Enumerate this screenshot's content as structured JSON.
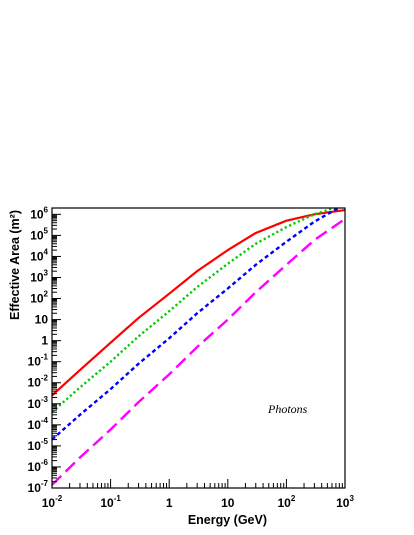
{
  "chart_data": {
    "type": "line",
    "xlabel": "Energy (GeV)",
    "ylabel": "Effective Area (m²)",
    "x_scale": "log",
    "y_scale": "log",
    "xlim": [
      0.01,
      1000
    ],
    "ylim": [
      1e-07,
      2000000.0
    ],
    "grid": false,
    "annotation": "Photons",
    "x_ticks": [
      {
        "value": 0.01,
        "base": "10",
        "exp": "-2"
      },
      {
        "value": 0.1,
        "base": "10",
        "exp": "-1"
      },
      {
        "value": 1,
        "base": "1",
        "exp": ""
      },
      {
        "value": 10,
        "base": "10",
        "exp": ""
      },
      {
        "value": 100,
        "base": "10",
        "exp": "2"
      },
      {
        "value": 1000,
        "base": "10",
        "exp": "3"
      }
    ],
    "y_ticks": [
      {
        "value": 1e-07,
        "base": "10",
        "exp": "-7"
      },
      {
        "value": 1e-06,
        "base": "10",
        "exp": "-6"
      },
      {
        "value": 1e-05,
        "base": "10",
        "exp": "-5"
      },
      {
        "value": 0.0001,
        "base": "10",
        "exp": "-4"
      },
      {
        "value": 0.001,
        "base": "10",
        "exp": "-3"
      },
      {
        "value": 0.01,
        "base": "10",
        "exp": "-2"
      },
      {
        "value": 0.1,
        "base": "10",
        "exp": "-1"
      },
      {
        "value": 1,
        "base": "1",
        "exp": ""
      },
      {
        "value": 10,
        "base": "10",
        "exp": ""
      },
      {
        "value": 100,
        "base": "10",
        "exp": "2"
      },
      {
        "value": 1000,
        "base": "10",
        "exp": "3"
      },
      {
        "value": 10000,
        "base": "10",
        "exp": "4"
      },
      {
        "value": 100000,
        "base": "10",
        "exp": "5"
      },
      {
        "value": 1000000,
        "base": "10",
        "exp": "6"
      }
    ],
    "series": [
      {
        "color": "#ff0000",
        "dash": "solid",
        "x": [
          0.01,
          0.03,
          0.1,
          0.3,
          1,
          3,
          10,
          30,
          100,
          300,
          1000
        ],
        "y": [
          0.0025,
          0.04,
          0.8,
          12,
          170,
          2000,
          20000,
          130000,
          500000,
          1000000,
          1600000
        ]
      },
      {
        "color": "#00cc00",
        "dash": "dotted",
        "x": [
          0.01,
          0.03,
          0.1,
          0.3,
          1,
          3,
          10,
          30,
          100,
          300,
          1000
        ],
        "y": [
          0.0004,
          0.006,
          0.1,
          1.6,
          25,
          350,
          4500,
          40000,
          250000,
          1000000,
          3000000
        ]
      },
      {
        "color": "#0000ff",
        "dash": "dashed",
        "x": [
          0.01,
          0.03,
          0.1,
          0.3,
          1,
          3,
          10,
          30,
          100,
          300,
          1000
        ],
        "y": [
          2e-05,
          0.0003,
          0.005,
          0.08,
          1.3,
          20,
          300,
          4000,
          50000,
          450000,
          3000000
        ]
      },
      {
        "color": "#ff00ff",
        "dash": "longdash",
        "x": [
          0.01,
          0.03,
          0.1,
          0.3,
          1,
          3,
          10,
          30,
          100,
          300,
          1000
        ],
        "y": [
          1.4e-07,
          2.8e-06,
          6e-05,
          0.0012,
          0.025,
          0.5,
          10,
          200,
          4000,
          60000,
          600000
        ]
      }
    ]
  }
}
